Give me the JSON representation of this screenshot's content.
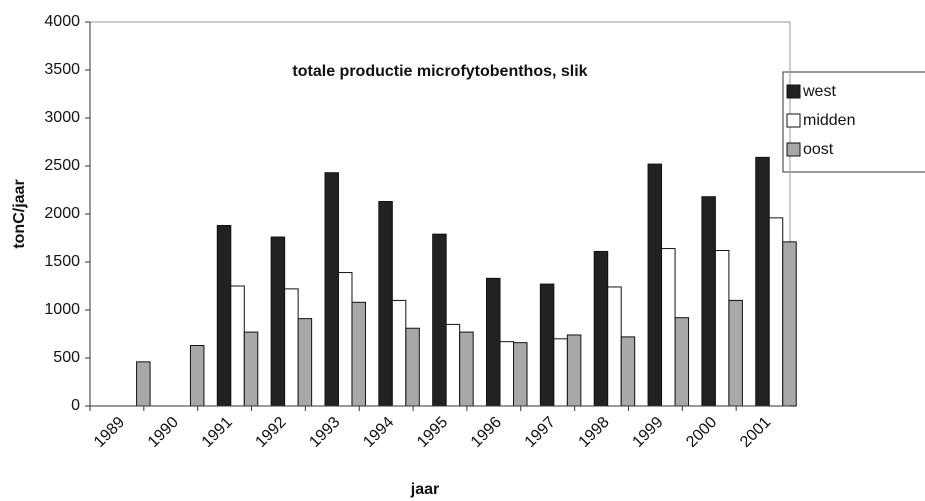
{
  "chart_data": {
    "type": "bar",
    "title": "totale productie microfytobenthos, slik",
    "x_label": "jaar",
    "y_label": "tonC/jaar",
    "categories": [
      "1989",
      "1990",
      "1991",
      "1992",
      "1993",
      "1994",
      "1995",
      "1996",
      "1997",
      "1998",
      "1999",
      "2000",
      "2001"
    ],
    "series": [
      {
        "name": "west",
        "color": "#222222",
        "values": [
          null,
          null,
          1880,
          1760,
          2430,
          2130,
          1790,
          1330,
          1270,
          1610,
          2520,
          2180,
          2590
        ]
      },
      {
        "name": "midden",
        "color": "#ffffff",
        "values": [
          null,
          null,
          1250,
          1220,
          1390,
          1100,
          850,
          670,
          700,
          1240,
          1640,
          1620,
          1960
        ]
      },
      {
        "name": "oost",
        "color": "#a8a8a8",
        "values": [
          460,
          630,
          770,
          910,
          1080,
          810,
          770,
          660,
          740,
          720,
          920,
          1100,
          1710
        ]
      }
    ],
    "ylim": [
      0,
      4000
    ],
    "yticks": [
      0,
      500,
      1000,
      1500,
      2000,
      2500,
      3000,
      3500,
      4000
    ],
    "grid": false,
    "legend": "right"
  }
}
